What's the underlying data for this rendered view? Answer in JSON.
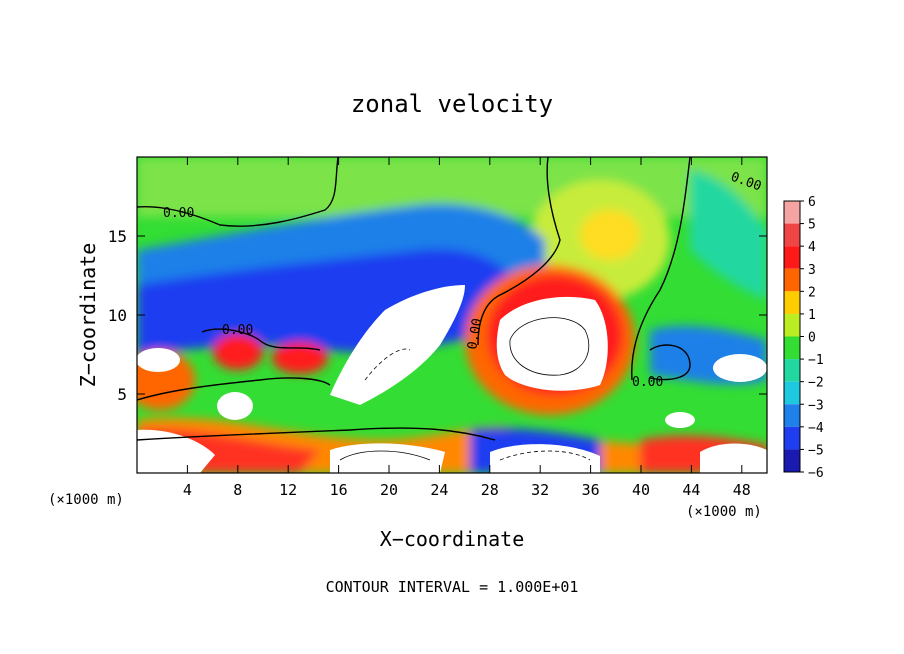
{
  "chart_data": {
    "type": "heatmap",
    "title": "zonal velocity",
    "xlabel": "X−coordinate",
    "ylabel": "Z−coordinate",
    "x_unit_left": "(×1000 m)",
    "x_unit_right": "(×1000 m)",
    "footer": "CONTOUR INTERVAL = 1.000E+01",
    "xlim": [
      0,
      50
    ],
    "ylim": [
      0,
      20
    ],
    "x_ticks": [
      4,
      8,
      12,
      16,
      20,
      24,
      28,
      32,
      36,
      40,
      44,
      48
    ],
    "y_ticks": [
      5,
      10,
      15
    ],
    "colorbar": {
      "levels": [
        6,
        5,
        4,
        3,
        2,
        1,
        0,
        -1,
        -2,
        -3,
        -4,
        -5,
        -6
      ],
      "colors": [
        "#f5a3a3",
        "#f04545",
        "#ff1a1a",
        "#ff6600",
        "#ffcc00",
        "#bbee22",
        "#33dd33",
        "#22d8a0",
        "#1ec8e0",
        "#1e80e8",
        "#1e3ef0",
        "#1a1ab0",
        "#7a1a9a"
      ]
    },
    "contour_labels": [
      "0.00",
      "0.00",
      "0.00",
      "0.00",
      "0.00"
    ],
    "grid": false,
    "legend": "colorbar-right"
  }
}
